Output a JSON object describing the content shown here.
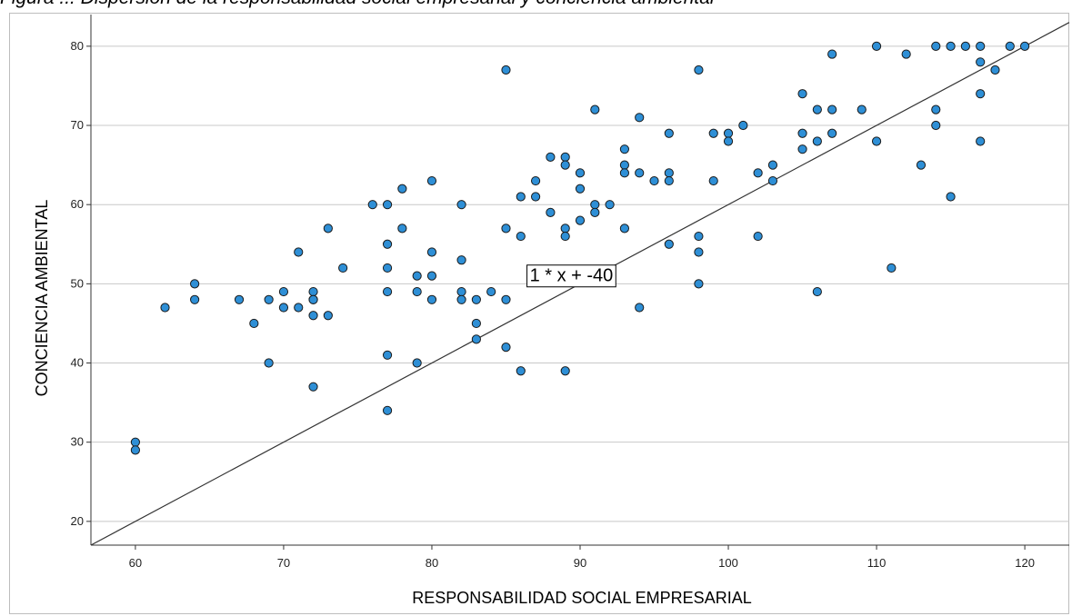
{
  "caption": "Figura ... Dispersión de la responsabilidad social empresarial y conciencia ambiental",
  "chart_data": {
    "type": "scatter",
    "xlabel": "RESPONSABILIDAD SOCIAL EMPRESARIAL",
    "ylabel": "CONCIENCIA AMBIENTAL",
    "xlim": [
      57,
      123
    ],
    "ylim": [
      17,
      84
    ],
    "xticks": [
      60,
      70,
      80,
      90,
      100,
      110,
      120
    ],
    "yticks": [
      20,
      30,
      40,
      50,
      60,
      70,
      80
    ],
    "grid": "horizontal",
    "point_color": "#2e8fd6",
    "point_edge_color": "#1a1a1a",
    "line": {
      "slope": 1,
      "intercept": -40,
      "label": "1 * x + -40",
      "color": "#333333"
    },
    "points": [
      [
        60,
        30
      ],
      [
        60,
        29
      ],
      [
        62,
        47
      ],
      [
        64,
        50
      ],
      [
        64,
        48
      ],
      [
        67,
        48
      ],
      [
        68,
        45
      ],
      [
        69,
        48
      ],
      [
        69,
        40
      ],
      [
        70,
        49
      ],
      [
        70,
        47
      ],
      [
        71,
        54
      ],
      [
        71,
        47
      ],
      [
        72,
        49
      ],
      [
        72,
        48
      ],
      [
        72,
        48
      ],
      [
        72,
        46
      ],
      [
        72,
        37
      ],
      [
        73,
        57
      ],
      [
        73,
        46
      ],
      [
        74,
        52
      ],
      [
        76,
        60
      ],
      [
        77,
        60
      ],
      [
        77,
        55
      ],
      [
        77,
        52
      ],
      [
        77,
        49
      ],
      [
        77,
        41
      ],
      [
        77,
        34
      ],
      [
        78,
        62
      ],
      [
        78,
        57
      ],
      [
        79,
        51
      ],
      [
        79,
        49
      ],
      [
        79,
        40
      ],
      [
        80,
        63
      ],
      [
        80,
        54
      ],
      [
        80,
        51
      ],
      [
        80,
        48
      ],
      [
        82,
        60
      ],
      [
        82,
        53
      ],
      [
        82,
        49
      ],
      [
        82,
        48
      ],
      [
        83,
        48
      ],
      [
        83,
        45
      ],
      [
        83,
        43
      ],
      [
        84,
        49
      ],
      [
        85,
        77
      ],
      [
        85,
        57
      ],
      [
        85,
        48
      ],
      [
        85,
        42
      ],
      [
        86,
        61
      ],
      [
        86,
        56
      ],
      [
        86,
        39
      ],
      [
        87,
        63
      ],
      [
        87,
        61
      ],
      [
        88,
        66
      ],
      [
        88,
        59
      ],
      [
        89,
        66
      ],
      [
        89,
        65
      ],
      [
        89,
        57
      ],
      [
        89,
        56
      ],
      [
        89,
        39
      ],
      [
        90,
        64
      ],
      [
        90,
        62
      ],
      [
        90,
        58
      ],
      [
        91,
        72
      ],
      [
        91,
        60
      ],
      [
        91,
        59
      ],
      [
        92,
        60
      ],
      [
        93,
        67
      ],
      [
        93,
        65
      ],
      [
        93,
        64
      ],
      [
        93,
        57
      ],
      [
        94,
        71
      ],
      [
        94,
        64
      ],
      [
        94,
        47
      ],
      [
        95,
        63
      ],
      [
        96,
        69
      ],
      [
        96,
        64
      ],
      [
        96,
        63
      ],
      [
        96,
        55
      ],
      [
        98,
        77
      ],
      [
        98,
        56
      ],
      [
        98,
        54
      ],
      [
        98,
        50
      ],
      [
        99,
        69
      ],
      [
        99,
        63
      ],
      [
        100,
        69
      ],
      [
        100,
        68
      ],
      [
        101,
        70
      ],
      [
        102,
        64
      ],
      [
        102,
        56
      ],
      [
        103,
        65
      ],
      [
        103,
        63
      ],
      [
        105,
        74
      ],
      [
        105,
        69
      ],
      [
        105,
        67
      ],
      [
        106,
        72
      ],
      [
        106,
        68
      ],
      [
        106,
        49
      ],
      [
        107,
        79
      ],
      [
        107,
        72
      ],
      [
        107,
        69
      ],
      [
        109,
        72
      ],
      [
        110,
        80
      ],
      [
        110,
        68
      ],
      [
        111,
        52
      ],
      [
        112,
        79
      ],
      [
        113,
        65
      ],
      [
        114,
        80
      ],
      [
        114,
        72
      ],
      [
        114,
        70
      ],
      [
        115,
        80
      ],
      [
        115,
        61
      ],
      [
        116,
        80
      ],
      [
        117,
        80
      ],
      [
        117,
        78
      ],
      [
        117,
        74
      ],
      [
        117,
        68
      ],
      [
        118,
        77
      ],
      [
        119,
        80
      ],
      [
        120,
        80
      ]
    ]
  }
}
